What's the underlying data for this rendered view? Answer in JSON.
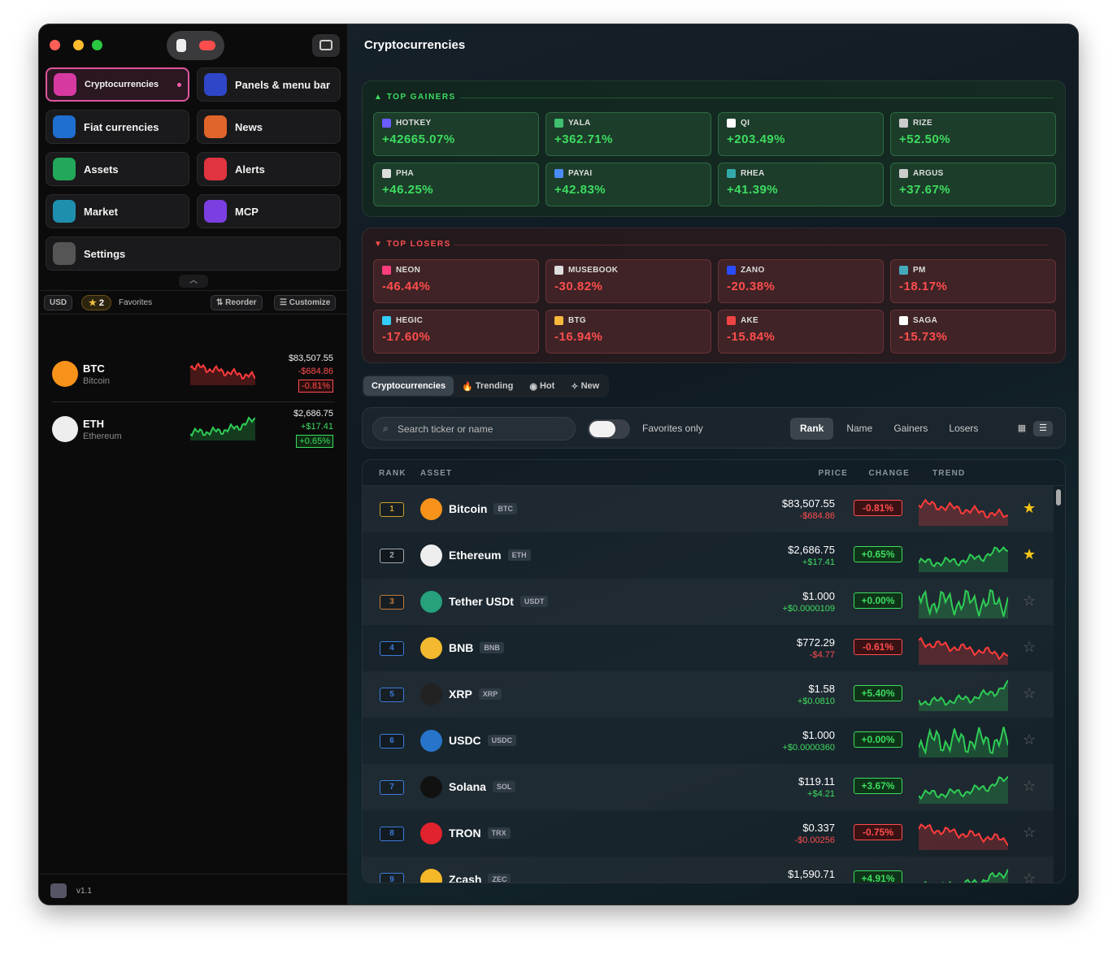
{
  "sidebar": {
    "nav": [
      {
        "label": "Cryptocurrencies"
      },
      {
        "label": "Panels & menu bar"
      },
      {
        "label": "Fiat currencies"
      },
      {
        "label": "News"
      },
      {
        "label": "Assets"
      },
      {
        "label": "Alerts"
      },
      {
        "label": "Market"
      },
      {
        "label": "MCP"
      },
      {
        "label": "Settings"
      }
    ],
    "toolbar": {
      "currency": "USD",
      "favorites_count": "2",
      "favorites_label": "Favorites",
      "reorder": "Reorder",
      "customize": "Customize"
    },
    "favorites": [
      {
        "symbol": "BTC",
        "name": "Bitcoin",
        "price": "$83,507.55",
        "change": "-$684.86",
        "percent": "-0.81%"
      },
      {
        "symbol": "ETH",
        "name": "Ethereum",
        "price": "$2,686.75",
        "change": "+$17.41",
        "percent": "+0.65%"
      }
    ],
    "version": "v1.1"
  },
  "header": {
    "title": "Cryptocurrencies"
  },
  "top_gainers": {
    "title": "TOP GAINERS",
    "items": [
      {
        "symbol": "HOTKEY",
        "change": "+42665.07%"
      },
      {
        "symbol": "YALA",
        "change": "+362.71%"
      },
      {
        "symbol": "QI",
        "change": "+203.49%"
      },
      {
        "symbol": "RIZE",
        "change": "+52.50%"
      },
      {
        "symbol": "PHA",
        "change": "+46.25%"
      },
      {
        "symbol": "PAYAI",
        "change": "+42.83%"
      },
      {
        "symbol": "RHEA",
        "change": "+41.39%"
      },
      {
        "symbol": "ARGUS",
        "change": "+37.67%"
      }
    ]
  },
  "top_losers": {
    "title": "TOP LOSERS",
    "items": [
      {
        "symbol": "NEON",
        "change": "-46.44%"
      },
      {
        "symbol": "MUSEBOOK",
        "change": "-30.82%"
      },
      {
        "symbol": "ZANO",
        "change": "-20.38%"
      },
      {
        "symbol": "PM",
        "change": "-18.17%"
      },
      {
        "symbol": "HEGIC",
        "change": "-17.60%"
      },
      {
        "symbol": "BTG",
        "change": "-16.94%"
      },
      {
        "symbol": "AKE",
        "change": "-15.84%"
      },
      {
        "symbol": "SAGA",
        "change": "-15.73%"
      }
    ]
  },
  "tabs": [
    "Cryptocurrencies",
    "Trending",
    "Hot",
    "New"
  ],
  "filters": {
    "search_placeholder": "Search ticker or name",
    "favorites_only": "Favorites only",
    "sort": [
      "Rank",
      "Name",
      "Gainers",
      "Losers"
    ]
  },
  "table": {
    "columns": [
      "RANK",
      "ASSET",
      "PRICE",
      "CHANGE",
      "TREND"
    ],
    "rows": [
      {
        "rank": "1",
        "name": "Bitcoin",
        "symbol": "BTC",
        "price": "$83,507.55",
        "change": "-$684.86",
        "percent": "-0.81%",
        "favorite": true
      },
      {
        "rank": "2",
        "name": "Ethereum",
        "symbol": "ETH",
        "price": "$2,686.75",
        "change": "+$17.41",
        "percent": "+0.65%",
        "favorite": true
      },
      {
        "rank": "3",
        "name": "Tether USDt",
        "symbol": "USDT",
        "price": "$1.000",
        "change": "+$0.0000109",
        "percent": "+0.00%",
        "favorite": false
      },
      {
        "rank": "4",
        "name": "BNB",
        "symbol": "BNB",
        "price": "$772.29",
        "change": "-$4.77",
        "percent": "-0.61%",
        "favorite": false
      },
      {
        "rank": "5",
        "name": "XRP",
        "symbol": "XRP",
        "price": "$1.58",
        "change": "+$0.0810",
        "percent": "+5.40%",
        "favorite": false
      },
      {
        "rank": "6",
        "name": "USDC",
        "symbol": "USDC",
        "price": "$1.000",
        "change": "+$0.0000360",
        "percent": "+0.00%",
        "favorite": false
      },
      {
        "rank": "7",
        "name": "Solana",
        "symbol": "SOL",
        "price": "$119.11",
        "change": "+$4.21",
        "percent": "+3.67%",
        "favorite": false
      },
      {
        "rank": "8",
        "name": "TRON",
        "symbol": "TRX",
        "price": "$0.337",
        "change": "-$0.00256",
        "percent": "-0.75%",
        "favorite": false
      },
      {
        "rank": "9",
        "name": "Zcash",
        "symbol": "ZEC",
        "price": "$1,590.71",
        "percent": "+4.91%",
        "favorite": false
      }
    ]
  }
}
